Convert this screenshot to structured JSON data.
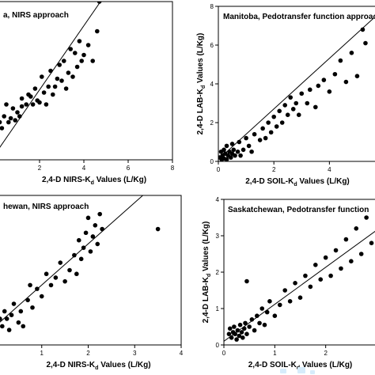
{
  "colors": {
    "marker": "#000000",
    "line": "#000000",
    "watermark": "#d6ecfb"
  },
  "chart_data": [
    {
      "type": "scatter",
      "title": "a, NIRS approach",
      "xlabel": {
        "pre": "2,4-D NIRS-K",
        "sub": "d",
        "post": " Values (L/Kg)"
      },
      "ylabel": null,
      "xlim": [
        0,
        8
      ],
      "ylim": [
        0,
        8
      ],
      "xticks": [
        "2",
        "4",
        "6",
        "8"
      ],
      "yticks": [],
      "fit_line": [
        [
          0,
          0.3
        ],
        [
          5,
          8.4
        ]
      ],
      "points": [
        [
          0.1,
          2.3
        ],
        [
          0.2,
          1.9
        ],
        [
          0.3,
          1.6
        ],
        [
          0.4,
          2.2
        ],
        [
          0.5,
          2.8
        ],
        [
          0.6,
          1.9
        ],
        [
          0.7,
          2.1
        ],
        [
          0.8,
          2.6
        ],
        [
          0.9,
          2.0
        ],
        [
          1.0,
          2.4
        ],
        [
          1.1,
          2.2
        ],
        [
          1.2,
          3.1
        ],
        [
          1.2,
          2.7
        ],
        [
          1.4,
          2.8
        ],
        [
          1.5,
          3.3
        ],
        [
          1.6,
          3.2
        ],
        [
          1.7,
          2.8
        ],
        [
          1.8,
          3.6
        ],
        [
          1.9,
          3.0
        ],
        [
          2.0,
          2.9
        ],
        [
          2.1,
          4.2
        ],
        [
          2.2,
          3.4
        ],
        [
          2.3,
          2.8
        ],
        [
          2.4,
          3.7
        ],
        [
          2.5,
          4.5
        ],
        [
          2.6,
          3.3
        ],
        [
          2.7,
          3.7
        ],
        [
          2.8,
          4.1
        ],
        [
          2.9,
          4.8
        ],
        [
          3.0,
          4.0
        ],
        [
          3.1,
          5.0
        ],
        [
          3.2,
          3.6
        ],
        [
          3.3,
          4.4
        ],
        [
          3.4,
          5.6
        ],
        [
          3.5,
          4.2
        ],
        [
          3.6,
          5.4
        ],
        [
          3.7,
          4.7
        ],
        [
          3.8,
          6.0
        ],
        [
          3.9,
          5.0
        ],
        [
          4.0,
          5.3
        ],
        [
          4.2,
          5.8
        ],
        [
          4.4,
          5.0
        ],
        [
          4.6,
          6.5
        ],
        [
          4.7,
          8.0
        ]
      ]
    },
    {
      "type": "scatter",
      "title": "Manitoba, Pedotransfer function approac",
      "xlabel": {
        "pre": "2,4-D SOIL-K",
        "sub": "d",
        "post": " Values (L/Kg)"
      },
      "ylabel": {
        "pre": "2,4-D LAB-K",
        "sub": "d",
        "post": " Values (L/Kg)"
      },
      "xlim": [
        0,
        5.7
      ],
      "ylim": [
        0,
        8
      ],
      "xticks": [
        "0",
        "2",
        "4"
      ],
      "yticks": [
        "0",
        "2",
        "4",
        "6",
        "8"
      ],
      "fit_line": [
        [
          0,
          0.1
        ],
        [
          5.6,
          7.4
        ]
      ],
      "points": [
        [
          0.05,
          0.2
        ],
        [
          0.1,
          0.5
        ],
        [
          0.12,
          0.1
        ],
        [
          0.15,
          0.3
        ],
        [
          0.2,
          0.6
        ],
        [
          0.2,
          0.15
        ],
        [
          0.25,
          0.4
        ],
        [
          0.3,
          0.1
        ],
        [
          0.3,
          0.8
        ],
        [
          0.35,
          0.3
        ],
        [
          0.4,
          0.5
        ],
        [
          0.45,
          0.2
        ],
        [
          0.5,
          0.9
        ],
        [
          0.5,
          0.4
        ],
        [
          0.55,
          0.6
        ],
        [
          0.6,
          0.3
        ],
        [
          0.7,
          0.5
        ],
        [
          0.75,
          1.0
        ],
        [
          0.8,
          0.3
        ],
        [
          0.9,
          0.6
        ],
        [
          1.0,
          1.2
        ],
        [
          1.1,
          0.8
        ],
        [
          1.2,
          0.5
        ],
        [
          1.3,
          1.4
        ],
        [
          1.5,
          1.1
        ],
        [
          1.6,
          1.7
        ],
        [
          1.7,
          1.2
        ],
        [
          1.8,
          2.0
        ],
        [
          1.9,
          1.5
        ],
        [
          2.0,
          2.3
        ],
        [
          2.1,
          1.8
        ],
        [
          2.2,
          2.6
        ],
        [
          2.3,
          2.0
        ],
        [
          2.4,
          2.9
        ],
        [
          2.5,
          2.4
        ],
        [
          2.6,
          3.3
        ],
        [
          2.7,
          2.7
        ],
        [
          2.8,
          3.0
        ],
        [
          2.9,
          2.4
        ],
        [
          3.0,
          3.5
        ],
        [
          3.2,
          3.0
        ],
        [
          3.3,
          3.7
        ],
        [
          3.5,
          2.8
        ],
        [
          3.6,
          3.9
        ],
        [
          3.8,
          4.2
        ],
        [
          4.0,
          3.6
        ],
        [
          4.2,
          4.5
        ],
        [
          4.4,
          5.2
        ],
        [
          4.6,
          4.1
        ],
        [
          4.8,
          5.6
        ],
        [
          5.0,
          4.4
        ],
        [
          5.2,
          6.8
        ],
        [
          5.3,
          6.1
        ]
      ]
    },
    {
      "type": "scatter",
      "title": "hewan, NIRS approach",
      "xlabel": {
        "pre": "2,4-D NIRS-K",
        "sub": "d",
        "post": " Values (L/Kg)"
      },
      "ylabel": null,
      "xlim": [
        0,
        4
      ],
      "ylim": [
        0,
        4
      ],
      "xticks": [
        "1",
        "2",
        "3",
        "4"
      ],
      "yticks": [],
      "fit_line": [
        [
          0,
          0.5
        ],
        [
          3.9,
          4.8
        ]
      ],
      "points": [
        [
          0.05,
          0.6
        ],
        [
          0.1,
          0.7
        ],
        [
          0.15,
          0.5
        ],
        [
          0.2,
          0.9
        ],
        [
          0.25,
          0.7
        ],
        [
          0.3,
          0.4
        ],
        [
          0.35,
          0.8
        ],
        [
          0.4,
          1.1
        ],
        [
          0.5,
          0.6
        ],
        [
          0.55,
          0.9
        ],
        [
          0.6,
          0.5
        ],
        [
          0.7,
          1.2
        ],
        [
          0.75,
          1.6
        ],
        [
          0.8,
          1.0
        ],
        [
          0.9,
          1.5
        ],
        [
          1.0,
          1.3
        ],
        [
          1.1,
          1.9
        ],
        [
          1.2,
          1.6
        ],
        [
          1.3,
          1.8
        ],
        [
          1.4,
          2.2
        ],
        [
          1.5,
          1.7
        ],
        [
          1.6,
          2.0
        ],
        [
          1.7,
          2.4
        ],
        [
          1.75,
          1.9
        ],
        [
          1.8,
          2.8
        ],
        [
          1.85,
          2.3
        ],
        [
          1.9,
          2.6
        ],
        [
          1.95,
          3.0
        ],
        [
          2.0,
          3.4
        ],
        [
          2.05,
          2.5
        ],
        [
          2.1,
          2.9
        ],
        [
          2.15,
          3.2
        ],
        [
          2.2,
          2.7
        ],
        [
          2.25,
          3.5
        ],
        [
          2.3,
          3.1
        ],
        [
          3.5,
          3.1
        ]
      ]
    },
    {
      "type": "scatter",
      "title": "Saskatchewan, Pedotransfer function",
      "xlabel": {
        "pre": "2,4-D SOIL-K",
        "sub": "d",
        "post": " Values (L/Kg)"
      },
      "ylabel": {
        "pre": "2,4-D LAB-K",
        "sub": "d",
        "post": " Values (L/Kg)"
      },
      "xlim": [
        0,
        3
      ],
      "ylim": [
        0,
        4
      ],
      "xticks": [
        "0",
        "1",
        "2"
      ],
      "yticks": [
        "0",
        "1",
        "2",
        "3",
        "4"
      ],
      "fit_line": [
        [
          0,
          0.1
        ],
        [
          3,
          3.15
        ]
      ],
      "points": [
        [
          0.1,
          0.3
        ],
        [
          0.12,
          0.45
        ],
        [
          0.15,
          0.2
        ],
        [
          0.18,
          0.35
        ],
        [
          0.2,
          0.5
        ],
        [
          0.22,
          0.3
        ],
        [
          0.25,
          0.15
        ],
        [
          0.27,
          0.4
        ],
        [
          0.3,
          0.25
        ],
        [
          0.32,
          0.55
        ],
        [
          0.35,
          0.35
        ],
        [
          0.37,
          0.2
        ],
        [
          0.4,
          0.45
        ],
        [
          0.42,
          0.6
        ],
        [
          0.45,
          0.3
        ],
        [
          0.5,
          0.5
        ],
        [
          0.55,
          0.7
        ],
        [
          0.6,
          0.4
        ],
        [
          0.65,
          0.8
        ],
        [
          0.7,
          0.6
        ],
        [
          0.75,
          1.0
        ],
        [
          0.8,
          0.55
        ],
        [
          0.85,
          0.9
        ],
        [
          0.9,
          1.2
        ],
        [
          1.0,
          0.8
        ],
        [
          1.1,
          1.1
        ],
        [
          1.2,
          1.5
        ],
        [
          1.3,
          1.2
        ],
        [
          1.4,
          1.7
        ],
        [
          1.5,
          1.3
        ],
        [
          1.6,
          1.9
        ],
        [
          1.7,
          1.6
        ],
        [
          1.8,
          2.2
        ],
        [
          1.9,
          1.8
        ],
        [
          2.0,
          2.4
        ],
        [
          2.1,
          1.9
        ],
        [
          2.2,
          2.6
        ],
        [
          2.3,
          2.1
        ],
        [
          2.4,
          2.9
        ],
        [
          2.5,
          2.3
        ],
        [
          2.6,
          3.2
        ],
        [
          2.7,
          2.5
        ],
        [
          2.8,
          3.5
        ],
        [
          2.9,
          2.8
        ],
        [
          0.45,
          1.75
        ]
      ]
    }
  ]
}
